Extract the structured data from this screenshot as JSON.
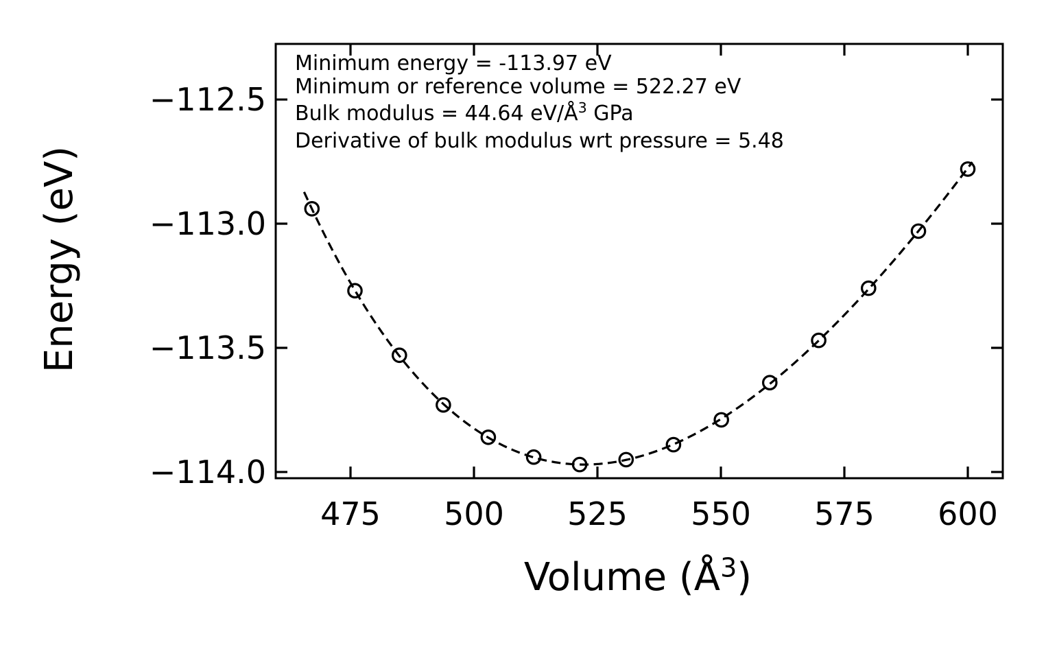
{
  "figure": {
    "background_color": "#ffffff",
    "foreground_color": "#000000"
  },
  "chart_data": {
    "type": "scatter",
    "title": "",
    "xlabel": {
      "prefix": "Volume (Å",
      "sup": "3",
      "suffix": ")"
    },
    "ylabel": "Energy (eV)",
    "xlim": [
      459.86,
      607.08
    ],
    "ylim": [
      -114.025,
      -112.276
    ],
    "grid": false,
    "legend": null,
    "tick_direction": "in",
    "ticks_on_all_sides": true,
    "x_ticks": {
      "values": [
        475,
        500,
        525,
        550,
        575,
        600
      ],
      "labels": [
        "475",
        "500",
        "525",
        "550",
        "575",
        "600"
      ]
    },
    "y_ticks": {
      "values": [
        -112.5,
        -113.0,
        -113.5,
        -114.0
      ],
      "labels": [
        "−112.5",
        "−113.0",
        "−113.5",
        "−114.0"
      ]
    },
    "series": [
      {
        "name": "calculated-energies",
        "type": "scatter",
        "marker": "open-circle",
        "color": "#000000",
        "x": [
          467.2,
          475.9,
          484.9,
          493.8,
          502.9,
          512.1,
          521.4,
          530.8,
          540.4,
          550.1,
          559.9,
          569.8,
          579.9,
          590.0,
          600.0
        ],
        "y": [
          -112.94,
          -113.27,
          -113.53,
          -113.73,
          -113.86,
          -113.94,
          -113.97,
          -113.95,
          -113.89,
          -113.79,
          -113.64,
          -113.47,
          -113.26,
          -113.03,
          -112.78
        ]
      },
      {
        "name": "equation-of-state-fit",
        "type": "line",
        "style": "dashed",
        "color": "#000000",
        "fit_params": {
          "minimum_energy_eV": -113.97,
          "reference_volume": 522.27,
          "bulk_modulus_GPa": 44.64,
          "bulk_modulus_pressure_derivative": 5.48
        },
        "v_range": [
          465.6,
          600.9
        ]
      }
    ],
    "annotation": {
      "line1": "Minimum energy = -113.97 eV",
      "line2": "Minimum or reference volume = 522.27 eV",
      "line3_prefix": "Bulk modulus = 44.64 eV/Å",
      "line3_sup": "3",
      "line3_suffix": " GPa",
      "line4": "Derivative of bulk modulus wrt pressure = 5.48"
    }
  }
}
